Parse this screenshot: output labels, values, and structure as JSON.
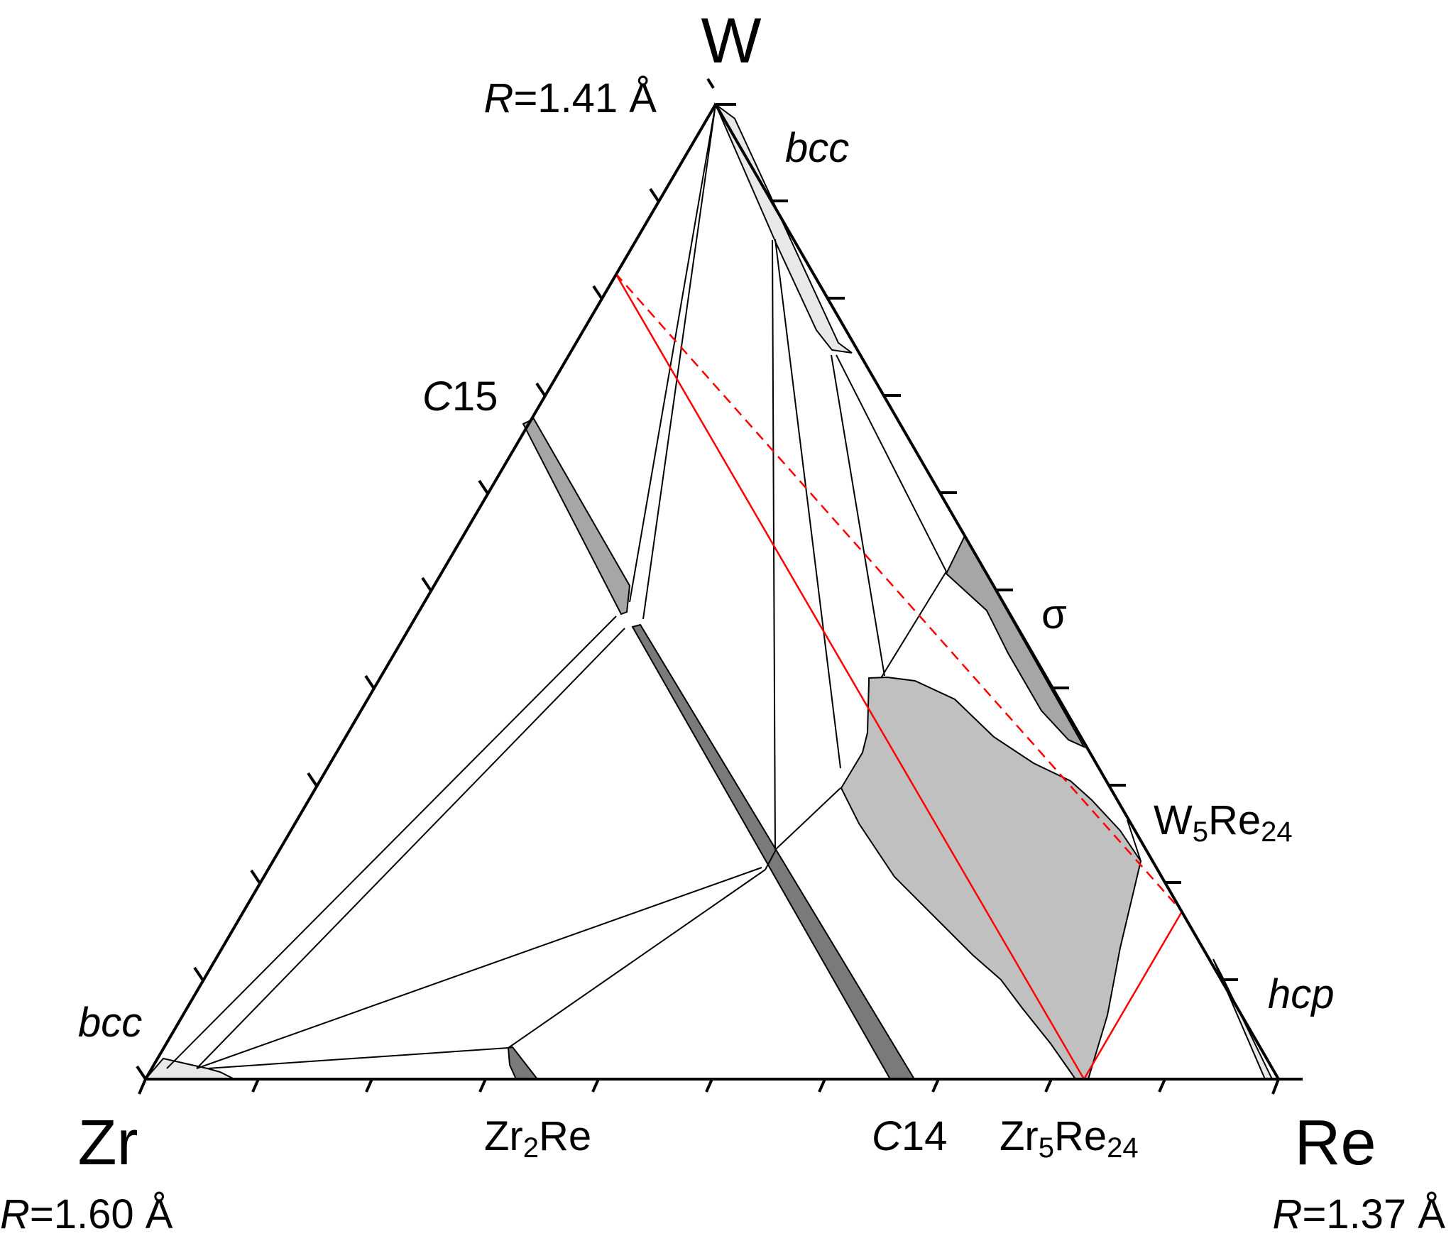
{
  "vertices": {
    "top": {
      "label": "W",
      "radius_prefix": "R",
      "radius_value": "=1.41 Å"
    },
    "left": {
      "label": "Zr",
      "radius_prefix": "R",
      "radius_value": "=1.60 Å"
    },
    "right": {
      "label": "Re",
      "radius_prefix": "R",
      "radius_value": "=1.37 Å"
    }
  },
  "phase_labels": {
    "bcc_w": "bcc",
    "bcc_zr": "bcc",
    "hcp": "hcp",
    "sigma": "σ",
    "c15_prefix": "C",
    "c15_suffix": "15",
    "c14_prefix": "C",
    "c14_suffix": "14",
    "zr2re": {
      "a": "Zr",
      "a_sub": "2",
      "b": "Re"
    },
    "zr5re24": {
      "a": "Zr",
      "a_sub": "5",
      "b": "Re",
      "b_sub": "24"
    },
    "w5re24": {
      "a": "W",
      "a_sub": "5",
      "b": "Re",
      "b_sub": "24"
    }
  },
  "colors": {
    "light_phase": "#e8e8e8",
    "medium_phase": "#a6a6a6",
    "region_phase": "#c0c0c0",
    "dark_phase": "#7a7a7a",
    "red_line": "#ff0000"
  }
}
